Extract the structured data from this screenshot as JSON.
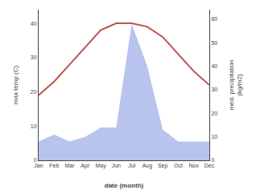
{
  "chart_data": {
    "type": "line",
    "categories": [
      "Jan",
      "Feb",
      "Mar",
      "Apr",
      "May",
      "Jun",
      "Jul",
      "Aug",
      "Sep",
      "Oct",
      "Nov",
      "Dec"
    ],
    "xlabel": "date (month)",
    "ylabel": "max temp (C)",
    "y2label": "med. precipitation\n(kg/m2)",
    "series": [
      {
        "type": "area",
        "axis": "y2",
        "color": "#b8c4ee",
        "values": [
          8,
          11,
          8,
          10,
          14,
          14,
          58,
          40,
          13,
          8,
          8,
          8
        ]
      },
      {
        "type": "line",
        "color": "#c0504d",
        "values": [
          19,
          23,
          28,
          33,
          38,
          40,
          40,
          39,
          36,
          31,
          26,
          22
        ]
      }
    ],
    "ylim": [
      0,
      44
    ],
    "yticks": [
      0,
      10,
      20,
      30,
      40
    ],
    "y2lim": [
      0,
      64
    ],
    "y2ticks": [
      0,
      10,
      20,
      30,
      40,
      50,
      60
    ],
    "grid": false
  }
}
